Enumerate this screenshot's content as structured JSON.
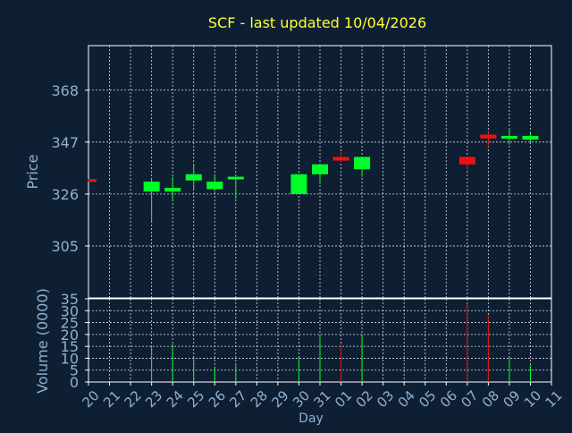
{
  "chart_data": {
    "type": "candlestick",
    "title": "SCF - last updated 10/04/2026",
    "price_axis": {
      "label": "Price",
      "ylim": [
        284,
        386
      ],
      "ticks": [
        305,
        326,
        347,
        368
      ]
    },
    "volume_axis": {
      "label": "Volume (0000)",
      "ylim": [
        0,
        35
      ],
      "ticks": [
        0,
        5,
        10,
        15,
        20,
        25,
        30,
        35
      ]
    },
    "x_axis": {
      "label": "Day",
      "tick_labels": [
        "20",
        "21",
        "22",
        "23",
        "24",
        "25",
        "26",
        "27",
        "28",
        "29",
        "30",
        "31",
        "01",
        "02",
        "03",
        "04",
        "05",
        "06",
        "07",
        "08",
        "09",
        "10",
        "11"
      ]
    },
    "grid": true,
    "colors": {
      "up": "#00ff2a",
      "down": "#ee1111",
      "title": "#ffff33",
      "axis_text": "#8fb0d0",
      "background": "#0f1f33",
      "grid": "#ffffff"
    },
    "candles": [
      {
        "day": "20",
        "open": 332,
        "close": 331,
        "high": 332,
        "low": 331,
        "volume": 0
      },
      {
        "day": "23",
        "open": 327,
        "close": 331,
        "high": 332,
        "low": 315,
        "volume": 15
      },
      {
        "day": "24",
        "open": 327,
        "close": 328.5,
        "high": 333,
        "low": 323,
        "volume": 16
      },
      {
        "day": "25",
        "open": 331.5,
        "close": 334,
        "high": 338,
        "low": 328,
        "volume": 10
      },
      {
        "day": "26",
        "open": 328,
        "close": 331,
        "high": 334,
        "low": 327,
        "volume": 6
      },
      {
        "day": "27",
        "open": 332.5,
        "close": 333,
        "high": 333,
        "low": 324,
        "volume": 8
      },
      {
        "day": "30",
        "open": 326,
        "close": 334,
        "high": 334,
        "low": 326,
        "volume": 10
      },
      {
        "day": "31",
        "open": 334,
        "close": 338,
        "high": 338,
        "low": 330,
        "volume": 19
      },
      {
        "day": "01",
        "open": 341,
        "close": 339.5,
        "high": 343,
        "low": 339,
        "volume": 16
      },
      {
        "day": "02",
        "open": 336,
        "close": 341,
        "high": 341,
        "low": 333,
        "volume": 20
      },
      {
        "day": "07",
        "open": 341,
        "close": 338,
        "high": 341,
        "low": 336,
        "volume": 33
      },
      {
        "day": "08",
        "open": 350,
        "close": 348.5,
        "high": 351,
        "low": 345,
        "volume": 28
      },
      {
        "day": "09",
        "open": 349,
        "close": 349.5,
        "high": 352,
        "low": 346,
        "volume": 10
      },
      {
        "day": "10",
        "open": 348,
        "close": 349.5,
        "high": 351,
        "low": 347,
        "volume": 7
      }
    ]
  }
}
